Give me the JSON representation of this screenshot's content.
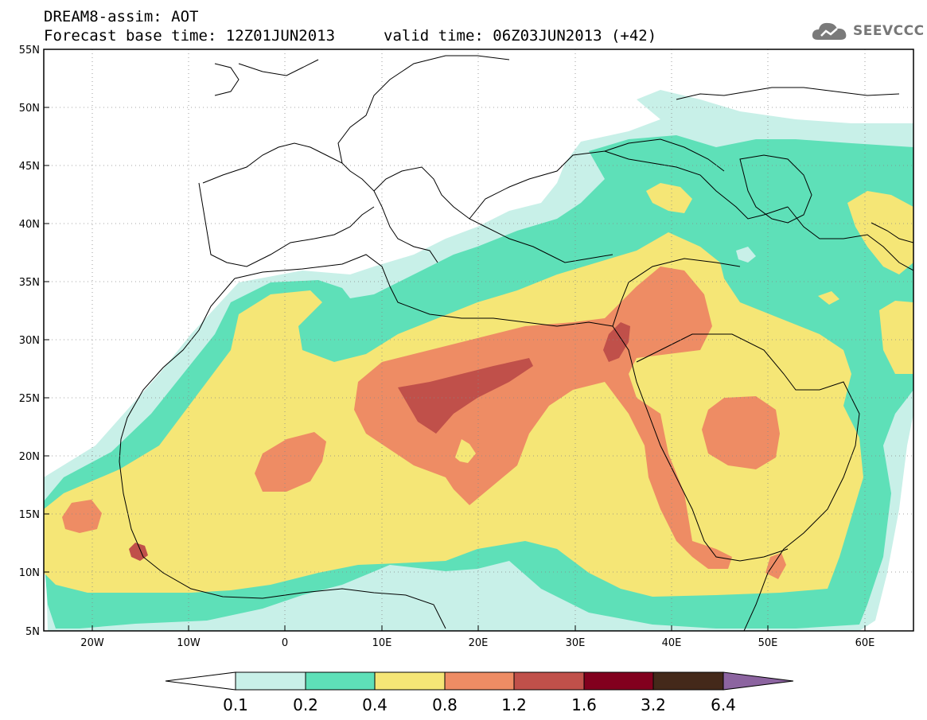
{
  "header": {
    "line1": "DREAM8-assim: AOT",
    "line2": "Forecast base time: 12Z01JUN2013",
    "line3": "valid time: 06Z03JUN2013 (+42)"
  },
  "logo": {
    "text": "SEEVCCC",
    "icon": "cloud-icon"
  },
  "axes": {
    "lat_labels": [
      "55N",
      "50N",
      "45N",
      "40N",
      "35N",
      "30N",
      "25N",
      "20N",
      "15N",
      "10N",
      "5N"
    ],
    "lon_labels": [
      "20W",
      "10W",
      "0",
      "10E",
      "20E",
      "30E",
      "40E",
      "50E",
      "60E"
    ],
    "lat_range": [
      5,
      55
    ],
    "lon_range": [
      -25,
      65
    ]
  },
  "colorbar": {
    "labels": [
      "0.1",
      "0.2",
      "0.4",
      "0.8",
      "1.2",
      "1.6",
      "3.2",
      "6.4"
    ],
    "colors": [
      "#ffffff",
      "#c8f0e8",
      "#5ee0b8",
      "#f5e676",
      "#ee8c64",
      "#c0504a",
      "#82001e",
      "#44291a",
      "#8c64a0"
    ]
  },
  "palette": {
    "v02": "#5ee0b8",
    "v01": "#c8f0e8",
    "v04": "#f5e676",
    "v08": "#ee8c64",
    "v12": "#c0504a"
  }
}
